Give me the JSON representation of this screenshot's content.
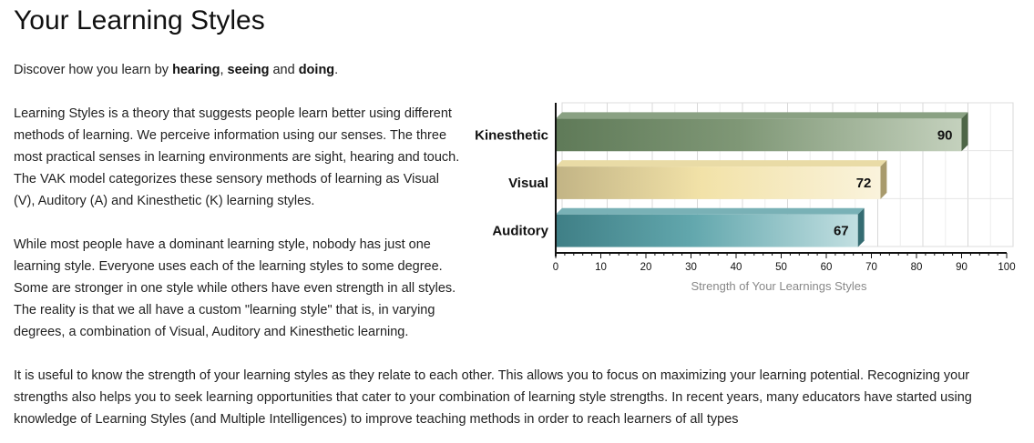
{
  "page": {
    "title": "Your Learning Styles",
    "intro": {
      "prefix": "Discover how you learn by ",
      "hearing": "hearing",
      "sep1": ", ",
      "seeing": "seeing",
      "sep2": " and ",
      "doing": "doing",
      "suffix": "."
    },
    "paragraph1": "Learning Styles is a theory that suggests people learn better using different methods of learning. We perceive information using our senses. The three most practical senses in learning environments are sight, hearing and touch. The VAK model categorizes these sensory methods of learning as Visual (V), Auditory (A) and Kinesthetic (K) learning styles.",
    "paragraph2": "While most people have a dominant learning style, nobody has just one learning style. Everyone uses each of the learning styles to some degree. Some are stronger in one style while others have even strength in all styles. The reality is that we all have a custom \"learning style\" that is, in varying degrees, a combination of Visual, Auditory and Kinesthetic learning.",
    "paragraph3": "It is useful to know the strength of your learning styles as they relate to each other. This allows you to focus on maximizing your learning potential. Recognizing your strengths also helps you to seek learning opportunities that cater to your combination of learning style strengths. In recent years, many educators have started using knowledge of Learning Styles (and Multiple Intelligences) to improve teaching methods in order to reach learners of all types"
  },
  "chart_data": {
    "type": "bar",
    "orientation": "horizontal",
    "style": "3d",
    "categories": [
      "Kinesthetic",
      "Visual",
      "Auditory"
    ],
    "values": [
      90,
      72,
      67
    ],
    "colors": [
      "#6f8a68",
      "#e8d9a0",
      "#5a9ea3"
    ],
    "xlabel": "Strength of Your Learnings Styles",
    "xlim": [
      0,
      100
    ],
    "ticks": [
      0,
      10,
      20,
      30,
      40,
      50,
      60,
      70,
      80,
      90,
      100
    ],
    "grid": true,
    "legend": "none"
  }
}
